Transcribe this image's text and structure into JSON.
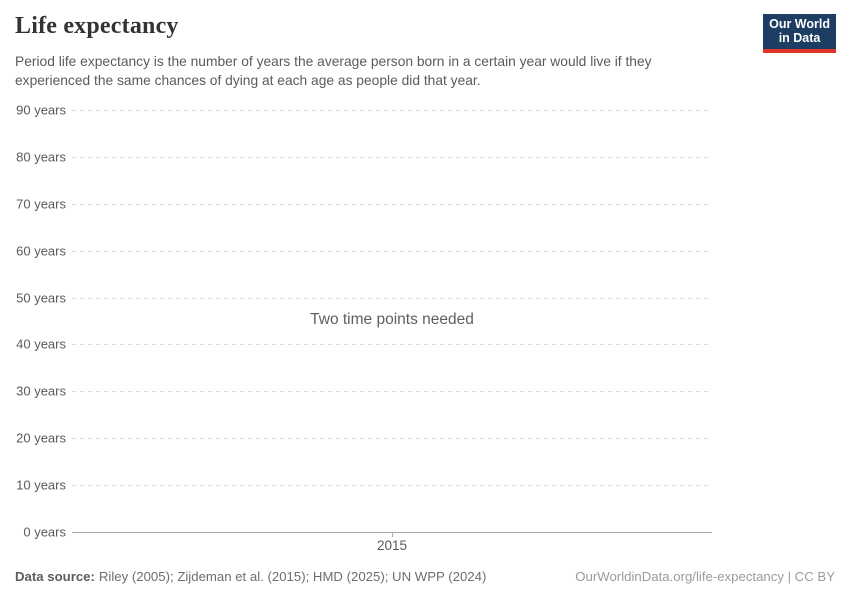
{
  "header": {
    "title": "Life expectancy",
    "subtitle": "Period life expectancy is the number of years the average person born in a certain year would live if they experienced the same chances of dying at each age as people did that year.",
    "logo": {
      "line1": "Our World",
      "line2": "in Data"
    }
  },
  "chart_data": {
    "type": "line",
    "title": "Life expectancy",
    "empty_state_message": "Two time points needed",
    "series": [],
    "y_axis": {
      "min": 0,
      "max": 90,
      "unit": "years",
      "ticks": [
        "90 years",
        "80 years",
        "70 years",
        "60 years",
        "50 years",
        "40 years",
        "30 years",
        "20 years",
        "10 years",
        "0 years"
      ]
    },
    "x_axis": {
      "ticks": [
        "2015"
      ]
    },
    "grid": "dashed horizontal gridlines",
    "legend": false
  },
  "footer": {
    "data_source_label": "Data source:",
    "data_source_text": "Riley (2005); Zijdeman et al. (2015); HMD (2025); UN WPP (2024)",
    "license_text": "OurWorldinData.org/life-expectancy | CC BY"
  },
  "colors": {
    "brand_navy": "#1d3d63",
    "brand_red": "#e0362b",
    "title_text": "#333333",
    "subtitle_text": "#5b5b5b",
    "gridline": "#dcdcdc",
    "axis_line": "#a8a8a8",
    "footer_text": "#6e6e6e",
    "license_text": "#9b9b9b",
    "background": "#ffffff"
  }
}
